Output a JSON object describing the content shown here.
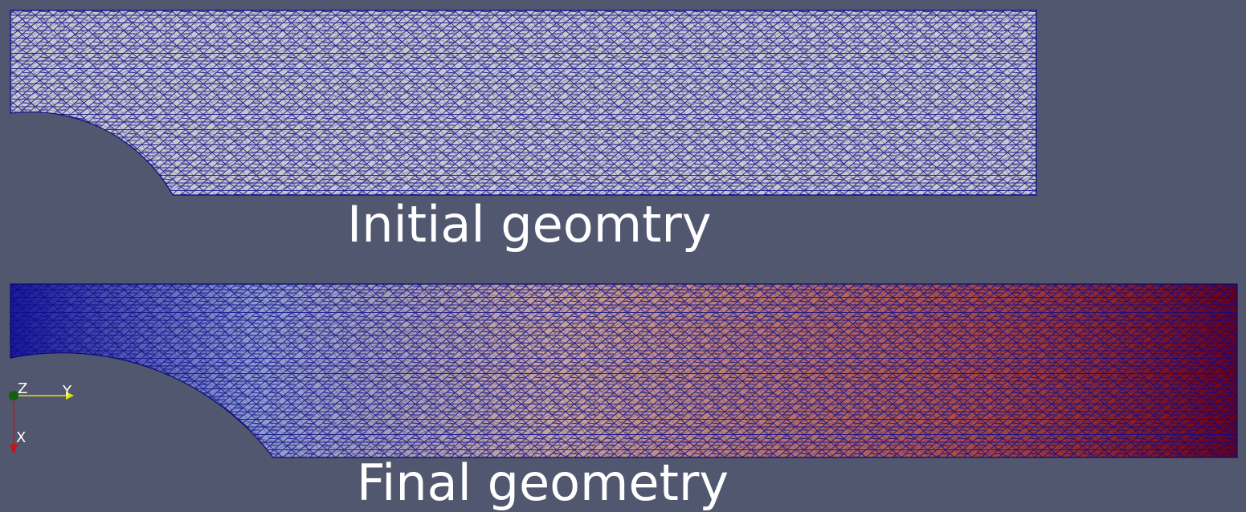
{
  "viewport": {
    "background_color": "#525770"
  },
  "initial_mesh": {
    "caption": "Initial geomtry",
    "fill_color": "#c8c8cc",
    "wire_color": "#0a0a8a"
  },
  "final_mesh": {
    "caption": "Final geometry",
    "color_map": [
      "#1a1a9a",
      "#8f9ccc",
      "#c7a397",
      "#a8463f",
      "#6e0010"
    ],
    "wire_color": "#0a0a6e"
  },
  "orientation_axes": {
    "x_label": "X",
    "y_label": "Y",
    "z_label": "Z",
    "x_color": "#d01010",
    "y_color": "#e0e010",
    "z_color": "#106010"
  }
}
